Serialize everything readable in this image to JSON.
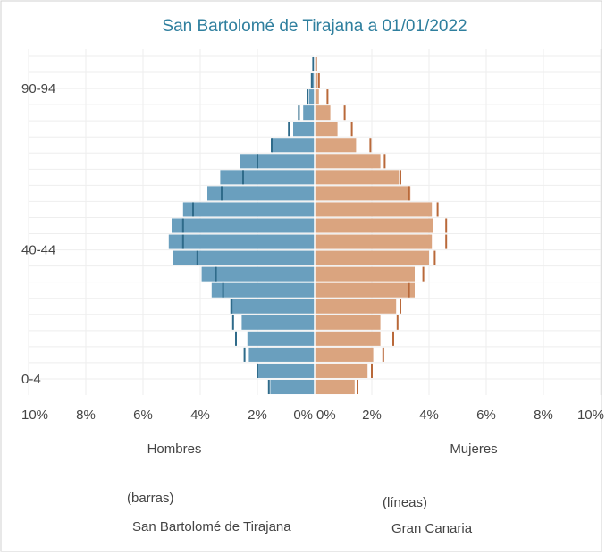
{
  "chart_data": {
    "type": "population-pyramid",
    "title": "San Bartolomé de Tirajana a 01/01/2022",
    "categories": [
      "0-4",
      null,
      null,
      null,
      null,
      null,
      null,
      null,
      "40-44",
      null,
      null,
      null,
      null,
      null,
      null,
      null,
      null,
      null,
      "90-94",
      null,
      null
    ],
    "sexes": [
      "Hombres",
      "Mujeres"
    ],
    "series": [
      {
        "name": "San Bartolomé de Tirajana",
        "style": "(barras)",
        "kind": "bar",
        "colors": [
          "#6a9fbe",
          "#daa47f"
        ],
        "men": [
          1.55,
          2.0,
          2.3,
          2.35,
          2.55,
          2.95,
          3.6,
          3.95,
          4.95,
          5.1,
          5.0,
          4.6,
          3.75,
          3.3,
          2.6,
          1.5,
          0.75,
          0.4,
          0.2,
          0.1,
          0.05
        ],
        "women": [
          1.4,
          1.85,
          2.05,
          2.3,
          2.3,
          2.85,
          3.5,
          3.5,
          4.0,
          4.1,
          4.15,
          4.1,
          3.35,
          2.95,
          2.3,
          1.45,
          0.8,
          0.55,
          0.15,
          0.1,
          0.05
        ]
      },
      {
        "name": "Gran Canaria",
        "style": "(líneas)",
        "kind": "line",
        "colors": [
          "#2f6b8a",
          "#b9693a"
        ],
        "men": [
          1.6,
          2.0,
          2.45,
          2.75,
          2.85,
          2.9,
          3.2,
          3.45,
          4.1,
          4.6,
          4.6,
          4.25,
          3.25,
          2.5,
          2.0,
          1.5,
          0.9,
          0.55,
          0.25,
          0.1,
          0.05
        ],
        "women": [
          1.5,
          2.0,
          2.4,
          2.75,
          2.9,
          3.0,
          3.3,
          3.8,
          4.2,
          4.6,
          4.6,
          4.3,
          3.3,
          3.0,
          2.45,
          1.95,
          1.3,
          1.05,
          0.45,
          0.15,
          0.05
        ]
      }
    ],
    "xlim": [
      0,
      10
    ],
    "left_xticks": [
      {
        "value": 10,
        "label": "10%"
      },
      {
        "value": 8,
        "label": "8%"
      },
      {
        "value": 6,
        "label": "6%"
      },
      {
        "value": 4,
        "label": "4%"
      },
      {
        "value": 2,
        "label": "2%"
      },
      {
        "value": 0,
        "label": "0%"
      }
    ],
    "right_xticks": [
      {
        "value": 0,
        "label": "0%"
      },
      {
        "value": 2,
        "label": "2%"
      },
      {
        "value": 4,
        "label": "4%"
      },
      {
        "value": 6,
        "label": "6%"
      },
      {
        "value": 8,
        "label": "8%"
      },
      {
        "value": 10,
        "label": "10%"
      }
    ],
    "grid": true
  }
}
